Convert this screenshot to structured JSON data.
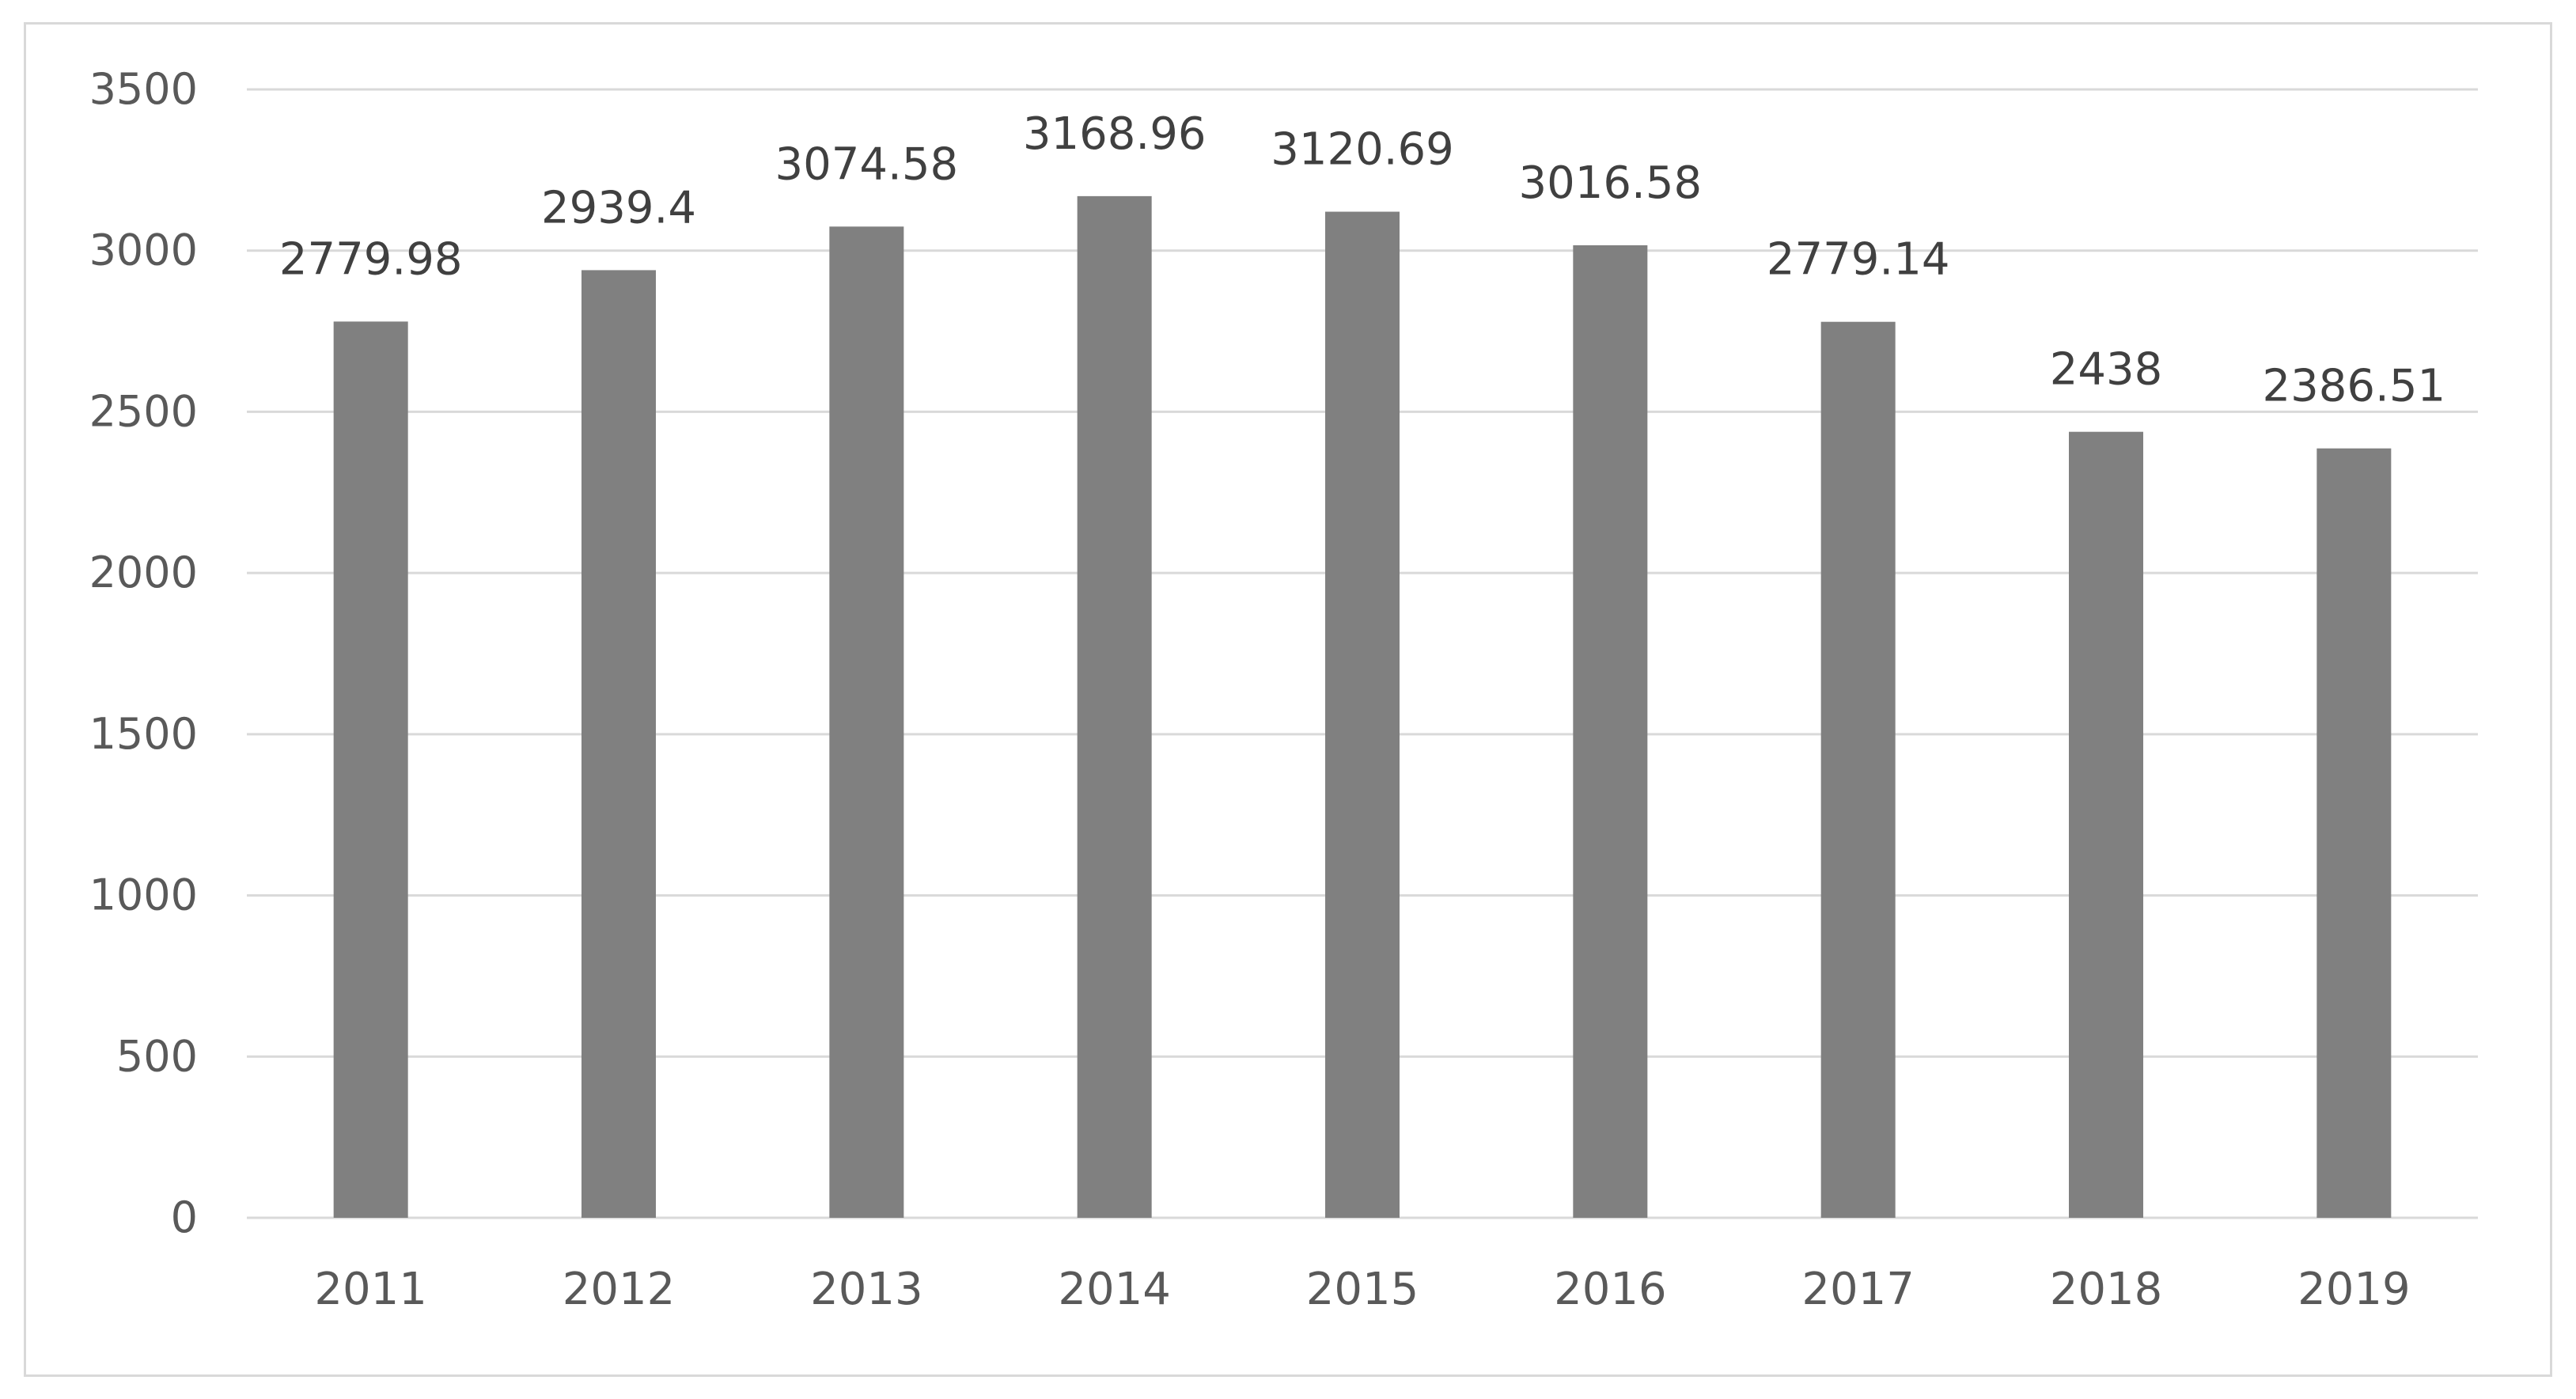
{
  "chart_data": {
    "type": "bar",
    "categories": [
      "2011",
      "2012",
      "2013",
      "2014",
      "2015",
      "2016",
      "2017",
      "2018",
      "2019"
    ],
    "values": [
      2779.98,
      2939.4,
      3074.58,
      3168.96,
      3120.69,
      3016.58,
      2779.14,
      2438,
      2386.51
    ],
    "data_labels": [
      "2779.98",
      "2939.4",
      "3074.58",
      "3168.96",
      "3120.69",
      "3016.58",
      "2779.14",
      "2438",
      "2386.51"
    ],
    "title": "",
    "xlabel": "",
    "ylabel": "",
    "ylim": [
      0,
      3500
    ],
    "yticks": [
      0,
      500,
      1000,
      1500,
      2000,
      2500,
      3000,
      3500
    ],
    "grid": true,
    "legend": "none",
    "colors": {
      "bar": "#808080",
      "grid": "#d9d9d9",
      "text": "#595959",
      "data_label": "#404040",
      "frame": "#d9d9d9"
    }
  }
}
